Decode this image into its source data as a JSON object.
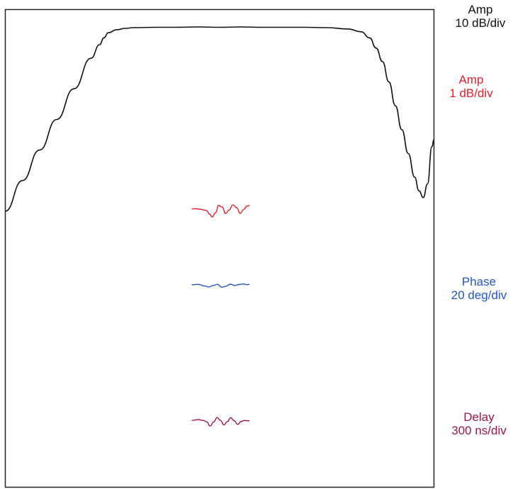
{
  "chart_data": {
    "type": "line",
    "grid": false,
    "series": [
      {
        "id": "amp-wide",
        "color": "#111111",
        "scale_line1": "Amp",
        "scale_line2": "10 dB/div",
        "x": [
          0,
          4,
          8,
          12,
          16,
          20,
          22,
          23,
          24,
          26,
          28,
          30,
          35,
          40,
          45,
          50,
          55,
          60,
          65,
          70,
          75,
          80,
          83,
          85,
          86.5,
          88,
          89.5,
          91,
          92.5,
          94,
          95.5,
          96.5,
          97.5,
          98.5,
          99.5,
          100
        ],
        "y": [
          -54,
          -45,
          -36,
          -27,
          -18,
          -9,
          -5,
          -3,
          -1.5,
          -0.6,
          -0.2,
          0,
          0.1,
          0.1,
          0.2,
          0.1,
          0.2,
          0.1,
          0.1,
          0.1,
          0,
          -0.4,
          -1.2,
          -3,
          -6,
          -10,
          -16,
          -23,
          -30,
          -37,
          -44,
          -48,
          -50,
          -46,
          -35,
          -33
        ]
      },
      {
        "id": "amp-fine",
        "color": "#e8202c",
        "scale_line1": "Amp",
        "scale_line2": "1 dB/div",
        "x": [
          43.5,
          44.5,
          45.5,
          46.5,
          47.0,
          47.6,
          48.3,
          49.0,
          49.8,
          50.6,
          51.4,
          52.2,
          53.1,
          54.0,
          54.8,
          55.6,
          56.4,
          57.0
        ],
        "y": [
          -0.05,
          -0.03,
          -0.08,
          -0.15,
          -0.2,
          -0.5,
          -0.75,
          -0.4,
          0.25,
          0.12,
          -0.45,
          -0.15,
          0.3,
          0.05,
          -0.45,
          -0.1,
          0.2,
          0.25
        ]
      },
      {
        "id": "phase",
        "color": "#2456c8",
        "scale_line1": "Phase",
        "scale_line2": "20 deg/div",
        "x": [
          43.5,
          45,
          46.5,
          47.5,
          48.5,
          49.5,
          50.5,
          51.5,
          52.5,
          53.5,
          54.5,
          55.5,
          56.5,
          57.0
        ],
        "y": [
          0,
          0.05,
          -0.1,
          -0.18,
          -0.05,
          0.05,
          -0.2,
          -0.12,
          0.06,
          -0.05,
          0.03,
          0.08,
          0.02,
          0.05
        ]
      },
      {
        "id": "delay",
        "color": "#a0164a",
        "scale_line1": "Delay",
        "scale_line2": "300 ns/div",
        "x": [
          43.5,
          45,
          46.2,
          47.0,
          47.8,
          48.6,
          49.4,
          50.2,
          51.0,
          51.8,
          52.6,
          53.4,
          54.2,
          55.0,
          55.8,
          56.5,
          57.0
        ],
        "y": [
          0.05,
          0.12,
          0.05,
          -0.08,
          -0.45,
          -0.1,
          0.3,
          0.05,
          -0.35,
          -0.05,
          0.28,
          0.02,
          -0.3,
          -0.05,
          0.05,
          0.02,
          0.02
        ]
      }
    ]
  }
}
